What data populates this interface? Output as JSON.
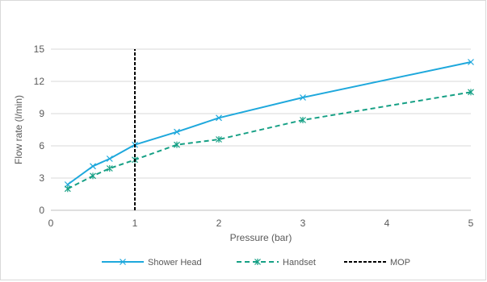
{
  "chart_data": {
    "type": "line",
    "title": "",
    "xlabel": "Pressure (bar)",
    "ylabel": "Flow rate (l/min)",
    "xlim": [
      0,
      5
    ],
    "ylim": [
      0,
      15
    ],
    "x_ticks": [
      0,
      1,
      2,
      3,
      4,
      5
    ],
    "y_ticks": [
      0,
      3,
      6,
      9,
      12,
      15
    ],
    "grid": "horizontal",
    "legend_position": "bottom",
    "series": [
      {
        "name": "Shower Head",
        "color": "#1ea8dc",
        "style": "solid",
        "marker": "x",
        "x": [
          0.2,
          0.5,
          0.7,
          1.0,
          1.5,
          2.0,
          3.0,
          5.0
        ],
        "y": [
          2.4,
          4.1,
          4.8,
          6.1,
          7.3,
          8.6,
          10.5,
          13.8
        ]
      },
      {
        "name": "Handset",
        "color": "#16a085",
        "style": "dashed",
        "marker": "star",
        "x": [
          0.2,
          0.5,
          0.7,
          1.0,
          1.5,
          2.0,
          3.0,
          5.0
        ],
        "y": [
          2.0,
          3.2,
          3.9,
          4.7,
          6.1,
          6.6,
          8.4,
          11.0
        ]
      },
      {
        "name": "MOP",
        "color": "#000000",
        "style": "dashed",
        "marker": "none",
        "x": [
          1.0,
          1.0
        ],
        "y": [
          0,
          15
        ]
      }
    ]
  }
}
